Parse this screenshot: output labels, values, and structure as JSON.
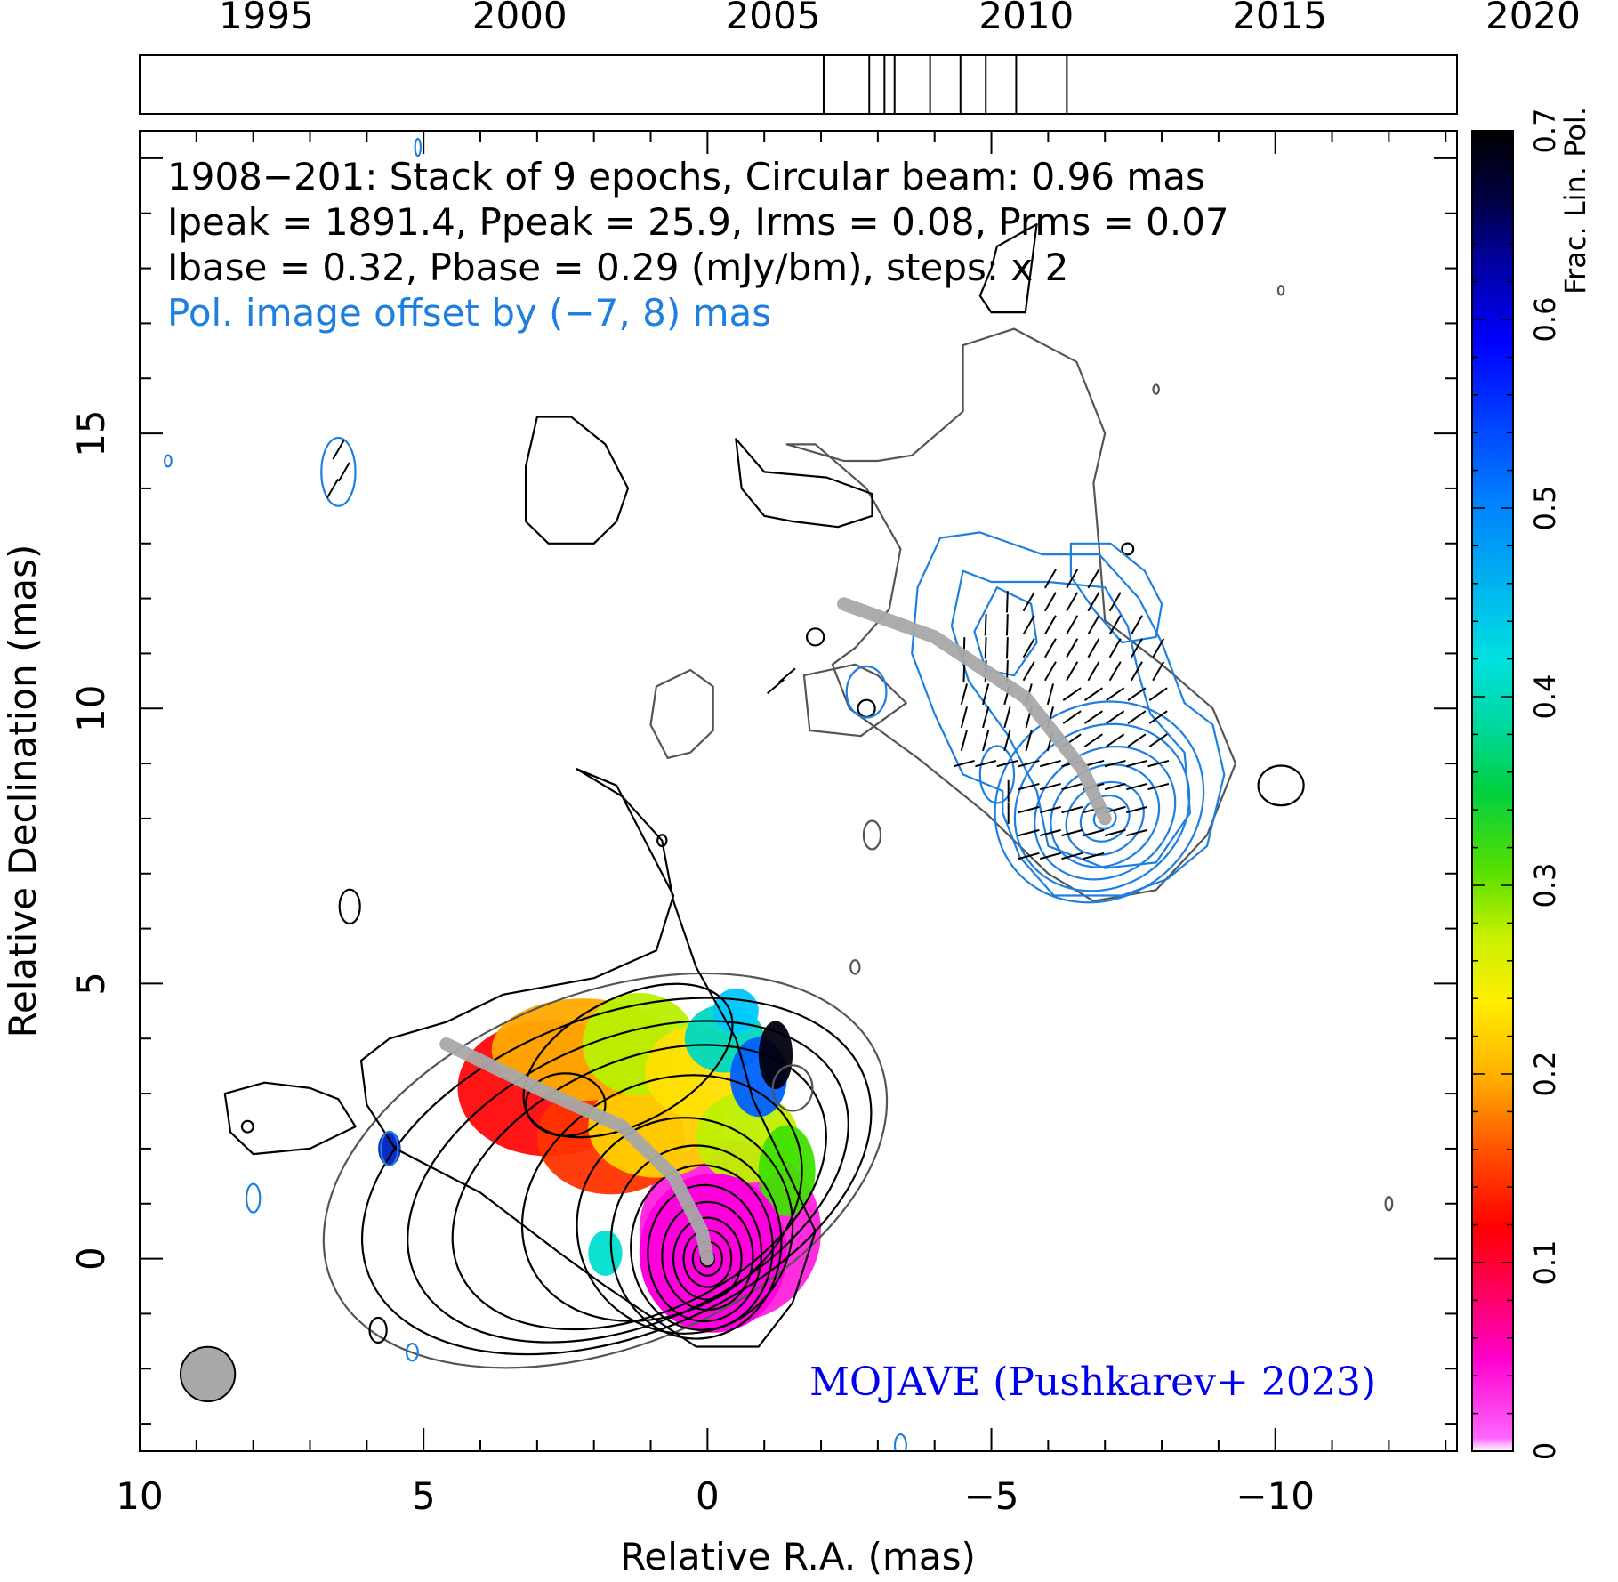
{
  "chart_data": {
    "type": "contour-polarization-map",
    "source": "1908−201",
    "annotations": {
      "line1": "1908−201: Stack of 9 epochs, Circular beam: 0.96 mas",
      "line2": "Ipeak = 1891.4, Ppeak = 25.9, Irms = 0.08, Prms = 0.07",
      "line3": "Ibase = 0.32, Pbase = 0.29 (mJy/bm), steps: x 2",
      "line4": "Pol. image offset by (−7, 8) mas",
      "credit": "MOJAVE (Pushkarev+ 2023)"
    },
    "xlabel": "Relative R.A. (mas)",
    "ylabel": "Relative Declination (mas)",
    "xlim": [
      10,
      -13.2
    ],
    "ylim": [
      -3.5,
      20.5
    ],
    "xticks": [
      10,
      5,
      0,
      -5,
      -10
    ],
    "xtick_labels": [
      "10",
      "5",
      "0",
      "−5",
      "−10"
    ],
    "yticks": [
      0,
      5,
      10,
      15
    ],
    "ytick_labels": [
      "0",
      "5",
      "10",
      "15"
    ],
    "epoch_axis": {
      "range": [
        1992.5,
        2018.5
      ],
      "ticks": [
        1995,
        2000,
        2005,
        2010,
        2015,
        2020
      ],
      "tick_labels": [
        "1995",
        "2000",
        "2005",
        "2010",
        "2015",
        "2020"
      ],
      "epochs": [
        2006.0,
        2006.9,
        2007.2,
        2007.4,
        2008.1,
        2008.7,
        2009.2,
        2009.8,
        2010.8
      ]
    },
    "colorbar": {
      "label": "Frac. Lin. Pol.",
      "range": [
        0,
        0.7
      ],
      "ticks": [
        0,
        0.1,
        0.2,
        0.3,
        0.4,
        0.5,
        0.6,
        0.7
      ],
      "tick_labels": [
        "0",
        "0.1",
        "0.2",
        "0.3",
        "0.4",
        "0.5",
        "0.6",
        "0.7"
      ]
    },
    "beam_diameter_mas": 0.96,
    "ridge_line_total": [
      [
        4.6,
        3.9
      ],
      [
        3.0,
        3.1
      ],
      [
        1.5,
        2.4
      ],
      [
        0.6,
        1.5
      ],
      [
        0.1,
        0.5
      ],
      [
        0.0,
        0.0
      ]
    ],
    "ridge_line_pol": [
      [
        -2.4,
        11.9
      ],
      [
        -4.0,
        11.3
      ],
      [
        -5.6,
        10.2
      ],
      [
        -6.6,
        8.9
      ],
      [
        -7.0,
        8.0
      ]
    ],
    "colors": {
      "total_intensity_contours": "#000000",
      "base_contour": "#555555",
      "polarization_contours": "#1e7fe0",
      "ridge": "#a8a8a8",
      "beam_fill": "#a8a8a8",
      "credit": "#0000ee",
      "offset_note": "#1e7fe0"
    }
  }
}
